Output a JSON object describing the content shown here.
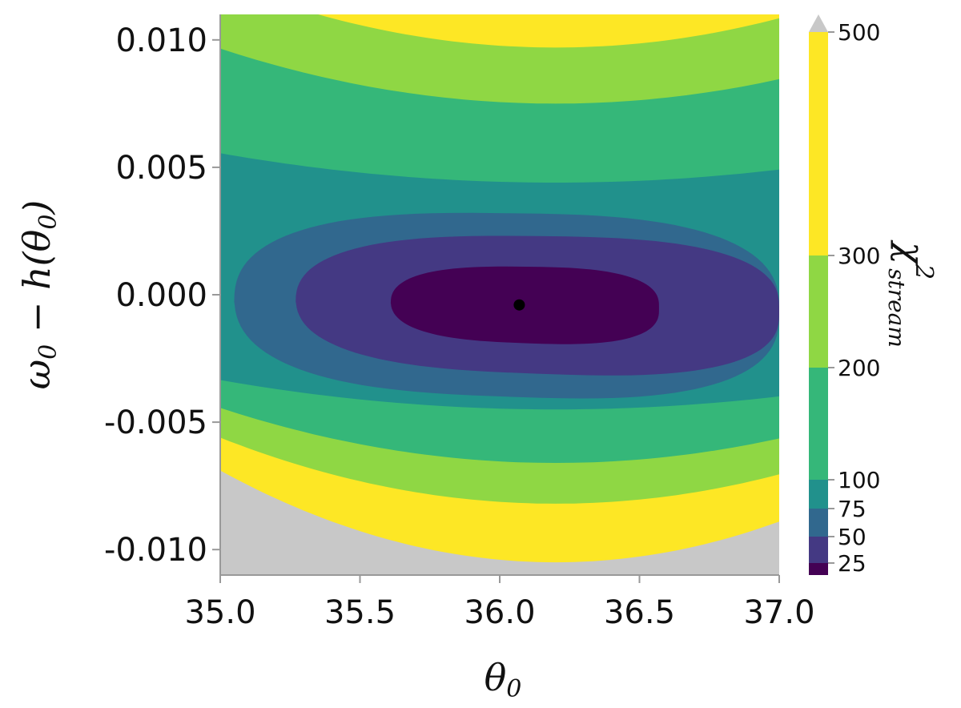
{
  "chart_data": {
    "type": "contour",
    "xlabel": "θ0",
    "ylabel": "ω0 − h(θ0)",
    "xlim": [
      35.0,
      37.0
    ],
    "ylim": [
      -0.011,
      0.011
    ],
    "xticks": [
      "35.0",
      "35.5",
      "36.0",
      "36.5",
      "37.0"
    ],
    "yticks": [
      "0.010",
      "0.005",
      "0.000",
      "-0.005",
      "-0.010"
    ],
    "ytick_values": [
      0.01,
      0.005,
      0.0,
      -0.005,
      -0.01
    ],
    "xtick_values": [
      35.0,
      35.5,
      36.0,
      36.5,
      37.0
    ],
    "colorbar": {
      "label": "χ²stream",
      "ticks": [
        "25",
        "50",
        "75",
        "100",
        "200",
        "300",
        "500"
      ],
      "levels": [
        0,
        25,
        50,
        75,
        100,
        200,
        300,
        500
      ],
      "colors": [
        "#440154",
        "#443983",
        "#31688e",
        "#21918c",
        "#35b779",
        "#8fd744",
        "#fde725"
      ],
      "over_color": "#c8c8c8",
      "extend": "max"
    },
    "minimum": {
      "x": 36.07,
      "y": -0.0004
    },
    "bands": [
      {
        "level": 25,
        "color": "#440154",
        "y_top": 0.0011,
        "y_bottom": -0.0019,
        "x_left": 35.61,
        "x_right": 36.57,
        "curvature": 0.0001
      },
      {
        "level": 50,
        "color": "#443983",
        "y_top": 0.0023,
        "y_bottom": -0.0031,
        "x_left": 35.27,
        "x_right": 37.0,
        "curvature": 0.0003
      },
      {
        "level": 75,
        "color": "#31688e",
        "y_top": 0.0032,
        "y_bottom": -0.004,
        "x_left": 35.05,
        "x_right": 37.0,
        "curvature": 0.0006
      },
      {
        "level": 100,
        "color": "#21918c",
        "y_top": 0.0044,
        "y_bottom": -0.0045,
        "x_left": 35.0,
        "x_right": 37.0,
        "curvature": 0.0008
      },
      {
        "level": 200,
        "color": "#35b779",
        "y_top": 0.0075,
        "y_bottom": -0.0066,
        "x_left": 35.0,
        "x_right": 37.0,
        "curvature": 0.0015
      },
      {
        "level": 300,
        "color": "#8fd744",
        "y_top": 0.0097,
        "y_bottom": -0.0082,
        "x_left": 35.0,
        "x_right": 37.0,
        "curvature": 0.0018
      },
      {
        "level": 500,
        "color": "#fde725",
        "y_top": 0.0128,
        "y_bottom": -0.0105,
        "x_left": 35.0,
        "x_right": 37.0,
        "curvature": 0.0025
      }
    ]
  }
}
